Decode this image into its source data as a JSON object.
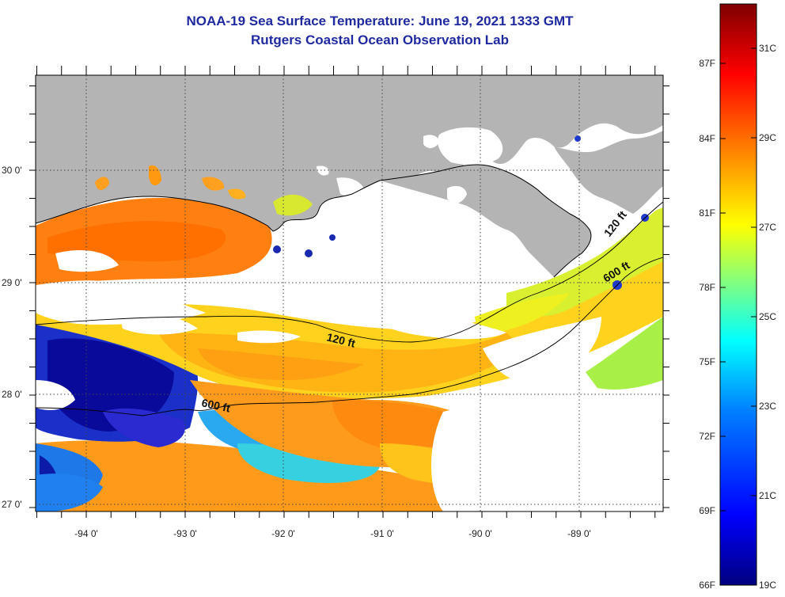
{
  "title": {
    "line1": "NOAA-19 Sea Surface Temperature:  June 19, 2021 1333 GMT",
    "line2": "Rutgers Coastal Ocean Observation Lab"
  },
  "map": {
    "longitude_labels": [
      "-94 0'",
      "-93 0'",
      "-92 0'",
      "-91 0'",
      "-90 0'",
      "-89 0'"
    ],
    "latitude_labels": [
      "30 0'",
      "29 0'",
      "28 0'",
      "27 0'"
    ],
    "contours": [
      {
        "label": "120 ft"
      },
      {
        "label": "600 ft"
      },
      {
        "label": "120 ft"
      },
      {
        "label": "600 ft"
      }
    ],
    "colors": {
      "land": "#b4b4b4",
      "cloud": "#ffffff",
      "grid": "#555555"
    }
  },
  "colorbar": {
    "fahrenheit_labels": [
      "87F",
      "84F",
      "81F",
      "78F",
      "75F",
      "72F",
      "69F",
      "66F"
    ],
    "celsius_labels": [
      "31C",
      "29C",
      "27C",
      "25C",
      "23C",
      "21C",
      "19C"
    ],
    "range_c": [
      19,
      32
    ],
    "colors": [
      "#00007f",
      "#0000ff",
      "#0080ff",
      "#00ffff",
      "#80ff80",
      "#ffff00",
      "#ff8000",
      "#ff0000",
      "#7f0000"
    ]
  }
}
